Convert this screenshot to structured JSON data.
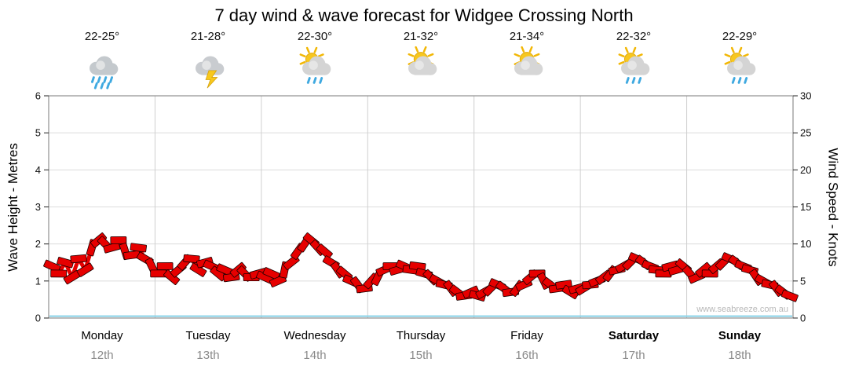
{
  "title": "7 day wind & wave forecast for Widgee Crossing North",
  "watermark": "www.seabreeze.com.au",
  "y_left": {
    "label": "Wave Height - Metres",
    "ticks": [
      0,
      1,
      2,
      3,
      4,
      5,
      6
    ]
  },
  "y_right": {
    "label": "Wind Speed - Knots",
    "ticks": [
      0,
      5,
      10,
      15,
      20,
      25,
      30
    ]
  },
  "days": [
    {
      "name": "Monday",
      "date": "12th",
      "temp": "22-25°",
      "icon": "rain-icon",
      "bold": false
    },
    {
      "name": "Tuesday",
      "date": "13th",
      "temp": "21-28°",
      "icon": "storm-icon",
      "bold": false
    },
    {
      "name": "Wednesday",
      "date": "14th",
      "temp": "22-30°",
      "icon": "sun-showers-icon",
      "bold": false
    },
    {
      "name": "Thursday",
      "date": "15th",
      "temp": "21-32°",
      "icon": "partly-cloudy-icon",
      "bold": false
    },
    {
      "name": "Friday",
      "date": "16th",
      "temp": "21-34°",
      "icon": "partly-cloudy-icon",
      "bold": false
    },
    {
      "name": "Saturday",
      "date": "17th",
      "temp": "22-32°",
      "icon": "sun-showers-icon",
      "bold": true
    },
    {
      "name": "Sunday",
      "date": "18th",
      "temp": "22-29°",
      "icon": "sun-showers-icon",
      "bold": true
    }
  ],
  "chart_data": {
    "type": "line",
    "title": "7 day wind & wave forecast for Widgee Crossing North",
    "x_description": "7 days (Monday 12th - Sunday 18th), 16 samples per day",
    "ylabel_left": "Wave Height - Metres",
    "ylabel_right": "Wind Speed - Knots",
    "ylim_left_metres": [
      0,
      6
    ],
    "ylim_right_knots": [
      0,
      30
    ],
    "grid": true,
    "colors": {
      "wind": "#e60000",
      "wave": "#86d2e8",
      "gridline": "#dcdcdc",
      "day_divider": "#cfcfcf",
      "frame": "#7a7a7a"
    },
    "series": [
      {
        "name": "Wind Speed",
        "unit": "knots",
        "axis": "right",
        "color": "#e60000",
        "values": [
          7,
          6,
          7.5,
          5.5,
          8,
          6.5,
          9.5,
          10.5,
          10,
          9.5,
          10.5,
          9,
          8.5,
          9.5,
          8,
          7,
          6,
          7,
          5.5,
          6.5,
          7.5,
          8,
          6.5,
          7.5,
          7,
          6,
          6.5,
          5.5,
          6.5,
          6,
          5.5,
          6,
          5.5,
          6,
          5,
          6.5,
          7.5,
          9,
          10,
          10.5,
          9.5,
          9,
          7.5,
          6.5,
          6,
          5,
          4.5,
          4,
          5,
          5.5,
          6.5,
          7,
          6.5,
          7,
          6.5,
          7,
          6,
          5.5,
          5,
          4.5,
          4,
          3.5,
          3,
          3.5,
          3,
          3.5,
          4,
          4.5,
          4,
          3.5,
          4,
          4.5,
          5.5,
          6,
          5,
          4.5,
          4,
          4.5,
          3.5,
          4,
          4,
          4.5,
          5,
          5.5,
          6,
          6.5,
          7,
          7.5,
          8,
          7.5,
          7,
          6.5,
          6,
          7,
          6.5,
          7,
          6,
          5.5,
          6.5,
          6,
          7,
          7.5,
          8,
          7.5,
          7,
          6.5,
          5.5,
          5,
          4.5,
          4,
          3.5,
          3
        ]
      },
      {
        "name": "Wave Height",
        "unit": "metres",
        "axis": "left",
        "color": "#86d2e8",
        "constant_value": 0.05
      }
    ]
  }
}
